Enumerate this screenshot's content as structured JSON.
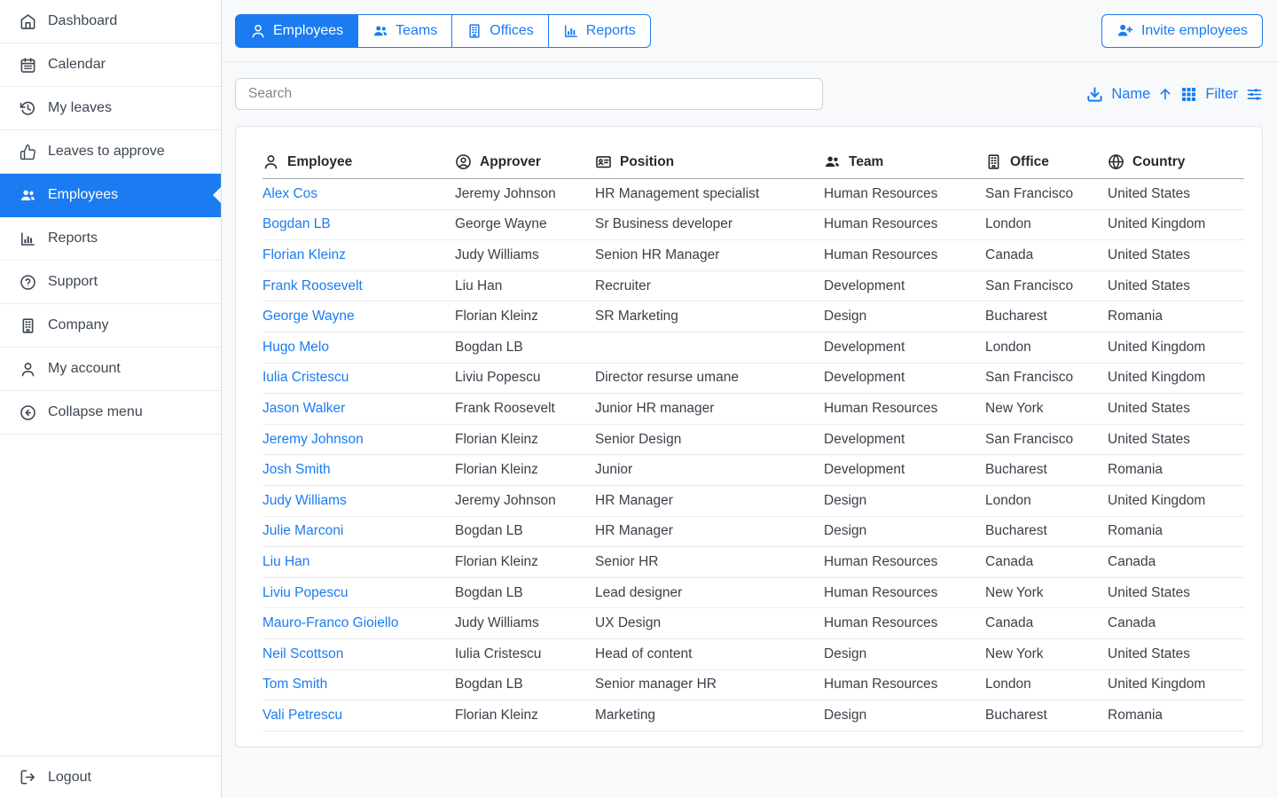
{
  "colors": {
    "accent": "#1a7cf0",
    "selected_bg": "#1a7cf0",
    "link": "#1a7cf0"
  },
  "sidebar": {
    "items": [
      {
        "name": "sidebar-item-dashboard",
        "label": "Dashboard",
        "icon": "home"
      },
      {
        "name": "sidebar-item-calendar",
        "label": "Calendar",
        "icon": "calendar"
      },
      {
        "name": "sidebar-item-my-leaves",
        "label": "My leaves",
        "icon": "history"
      },
      {
        "name": "sidebar-item-leaves-to-approve",
        "label": "Leaves to approve",
        "icon": "thumbs-up"
      },
      {
        "name": "sidebar-item-employees",
        "label": "Employees",
        "icon": "users",
        "active": true
      },
      {
        "name": "sidebar-item-reports",
        "label": "Reports",
        "icon": "bar-chart"
      },
      {
        "name": "sidebar-item-support",
        "label": "Support",
        "icon": "help-circle"
      },
      {
        "name": "sidebar-item-company",
        "label": "Company",
        "icon": "building"
      },
      {
        "name": "sidebar-item-my-account",
        "label": "My account",
        "icon": "user"
      },
      {
        "name": "sidebar-item-collapse-menu",
        "label": "Collapse menu",
        "icon": "arrow-left-circle"
      }
    ],
    "logout_label": "Logout",
    "logout_icon": "logout"
  },
  "header": {
    "tabs": [
      {
        "name": "tab-employees",
        "label": "Employees",
        "icon": "user",
        "active": true
      },
      {
        "name": "tab-teams",
        "label": "Teams",
        "icon": "users"
      },
      {
        "name": "tab-offices",
        "label": "Offices",
        "icon": "building"
      },
      {
        "name": "tab-reports",
        "label": "Reports",
        "icon": "bar-chart"
      }
    ],
    "invite_label": "Invite employees",
    "invite_icon": "user-plus"
  },
  "toolbar": {
    "search_placeholder": "Search",
    "sort_label": "Name",
    "sort_icons": [
      "download",
      "arrow-up"
    ],
    "filter_label": "Filter",
    "filter_icons": [
      "grid",
      "sliders"
    ]
  },
  "table": {
    "columns": [
      {
        "name": "column-header-employee",
        "label": "Employee",
        "icon": "user"
      },
      {
        "name": "column-header-approver",
        "label": "Approver",
        "icon": "user-circle"
      },
      {
        "name": "column-header-position",
        "label": "Position",
        "icon": "id-card"
      },
      {
        "name": "column-header-team",
        "label": "Team",
        "icon": "users"
      },
      {
        "name": "column-header-office",
        "label": "Office",
        "icon": "building"
      },
      {
        "name": "column-header-country",
        "label": "Country",
        "icon": "globe"
      }
    ],
    "rows": [
      {
        "employee": "Alex Cos",
        "approver": "Jeremy Johnson",
        "position": "HR Management specialist",
        "team": "Human Resources",
        "office": "San Francisco",
        "country": "United States"
      },
      {
        "employee": "Bogdan LB",
        "approver": "George Wayne",
        "position": "Sr Business developer",
        "team": "Human Resources",
        "office": "London",
        "country": "United Kingdom"
      },
      {
        "employee": "Florian Kleinz",
        "approver": "Judy Williams",
        "position": "Senion HR Manager",
        "team": "Human Resources",
        "office": "Canada",
        "country": "United States"
      },
      {
        "employee": "Frank Roosevelt",
        "approver": "Liu Han",
        "position": "Recruiter",
        "team": "Development",
        "office": "San Francisco",
        "country": "United States"
      },
      {
        "employee": "George Wayne",
        "approver": "Florian Kleinz",
        "position": "SR Marketing",
        "team": "Design",
        "office": "Bucharest",
        "country": "Romania"
      },
      {
        "employee": "Hugo Melo",
        "approver": "Bogdan LB",
        "position": "",
        "team": "Development",
        "office": "London",
        "country": "United Kingdom"
      },
      {
        "employee": "Iulia Cristescu",
        "approver": "Liviu Popescu",
        "position": "Director resurse umane",
        "team": "Development",
        "office": "San Francisco",
        "country": "United Kingdom"
      },
      {
        "employee": "Jason Walker",
        "approver": "Frank Roosevelt",
        "position": "Junior HR manager",
        "team": "Human Resources",
        "office": "New York",
        "country": "United States"
      },
      {
        "employee": "Jeremy Johnson",
        "approver": "Florian Kleinz",
        "position": "Senior Design",
        "team": "Development",
        "office": "San Francisco",
        "country": "United States"
      },
      {
        "employee": "Josh Smith",
        "approver": "Florian Kleinz",
        "position": "Junior",
        "team": "Development",
        "office": "Bucharest",
        "country": "Romania"
      },
      {
        "employee": "Judy Williams",
        "approver": "Jeremy Johnson",
        "position": "HR Manager",
        "team": "Design",
        "office": "London",
        "country": "United Kingdom"
      },
      {
        "employee": "Julie Marconi",
        "approver": "Bogdan LB",
        "position": "HR Manager",
        "team": "Design",
        "office": "Bucharest",
        "country": "Romania"
      },
      {
        "employee": "Liu Han",
        "approver": "Florian Kleinz",
        "position": "Senior HR",
        "team": "Human Resources",
        "office": "Canada",
        "country": "Canada"
      },
      {
        "employee": "Liviu Popescu",
        "approver": "Bogdan LB",
        "position": "Lead designer",
        "team": "Human Resources",
        "office": "New York",
        "country": "United States"
      },
      {
        "employee": "Mauro-Franco Gioiello",
        "approver": "Judy Williams",
        "position": "UX Design",
        "team": "Human Resources",
        "office": "Canada",
        "country": "Canada"
      },
      {
        "employee": "Neil Scottson",
        "approver": "Iulia Cristescu",
        "position": "Head of content",
        "team": "Design",
        "office": "New York",
        "country": "United States"
      },
      {
        "employee": "Tom Smith",
        "approver": "Bogdan LB",
        "position": "Senior manager HR",
        "team": "Human Resources",
        "office": "London",
        "country": "United Kingdom"
      },
      {
        "employee": "Vali Petrescu",
        "approver": "Florian Kleinz",
        "position": "Marketing",
        "team": "Design",
        "office": "Bucharest",
        "country": "Romania"
      }
    ]
  }
}
